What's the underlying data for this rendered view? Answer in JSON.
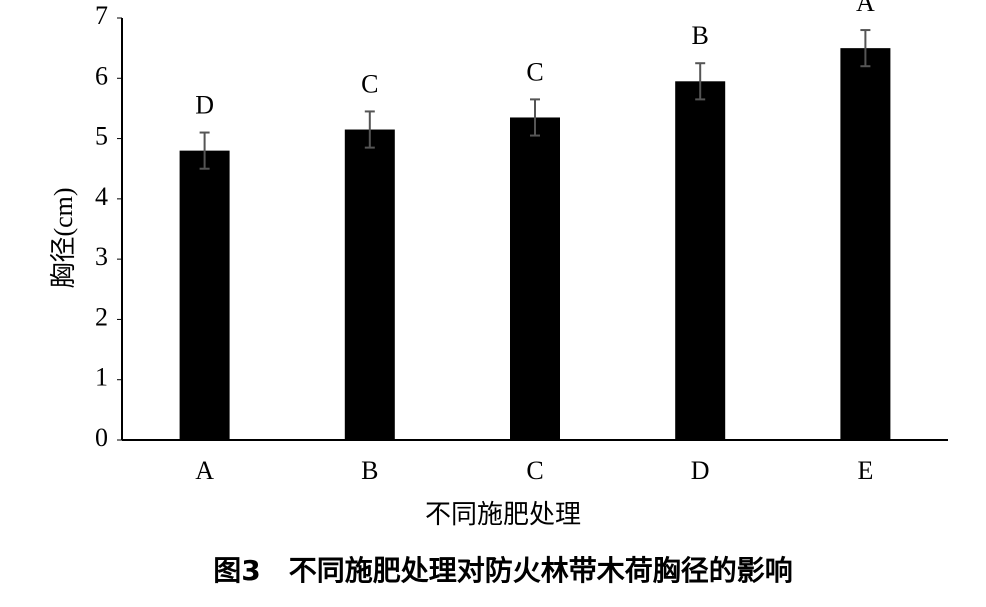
{
  "chart_data": {
    "type": "bar",
    "x_label": "不同施肥处理",
    "y_label": "胸径(cm)",
    "caption": "图3　不同施肥处理对防火林带木荷胸径的影响",
    "categories": [
      "A",
      "B",
      "C",
      "D",
      "E"
    ],
    "values": [
      4.8,
      5.15,
      5.35,
      5.95,
      6.5
    ],
    "errors": [
      0.3,
      0.3,
      0.3,
      0.3,
      0.3
    ],
    "significance_labels": [
      "D",
      "C",
      "C",
      "B",
      "A"
    ],
    "color": "#000000",
    "ylim": [
      0,
      7
    ],
    "yticks": [
      0,
      1,
      2,
      3,
      4,
      5,
      6,
      7
    ],
    "grid": false
  }
}
